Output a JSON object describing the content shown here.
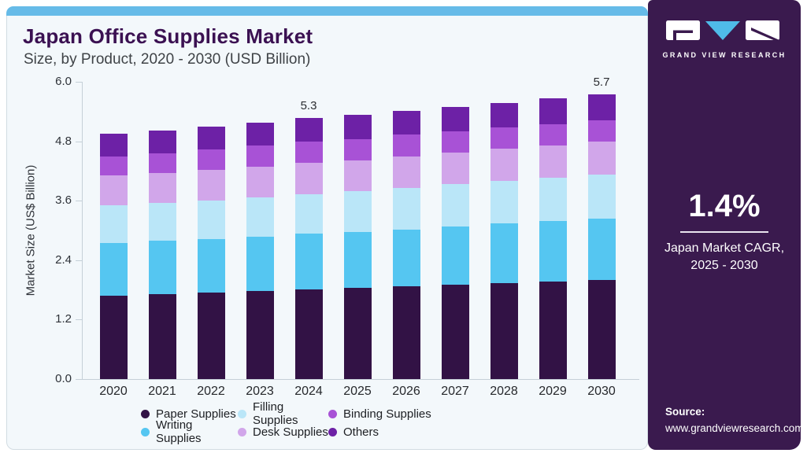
{
  "header": {
    "title": "Japan Office Supplies Market",
    "subtitle": "Size, by Product, 2020 - 2030 (USD Billion)"
  },
  "chart_data": {
    "type": "bar",
    "stacked": true,
    "title": "Japan Office Supplies Market Size, by Product, 2020 - 2030 (USD Billion)",
    "xlabel": "",
    "ylabel": "Market Size (US$ Billion)",
    "ylim": [
      0,
      6.0
    ],
    "y_ticks": [
      "0.0",
      "1.2",
      "2.4",
      "3.6",
      "4.8",
      "6.0"
    ],
    "grid": false,
    "legend_position": "bottom",
    "categories": [
      "2020",
      "2021",
      "2022",
      "2023",
      "2024",
      "2025",
      "2026",
      "2027",
      "2028",
      "2029",
      "2030"
    ],
    "series": [
      {
        "name": "Paper Supplies",
        "color": "#321245",
        "values": [
          1.68,
          1.71,
          1.74,
          1.78,
          1.81,
          1.84,
          1.87,
          1.9,
          1.94,
          1.97,
          2.0
        ]
      },
      {
        "name": "Writing Supplies",
        "color": "#55c6f1",
        "values": [
          1.07,
          1.08,
          1.09,
          1.1,
          1.12,
          1.13,
          1.15,
          1.18,
          1.2,
          1.22,
          1.24
        ]
      },
      {
        "name": "Filling Supplies",
        "color": "#bae6f8",
        "values": [
          0.76,
          0.77,
          0.78,
          0.79,
          0.8,
          0.82,
          0.84,
          0.85,
          0.86,
          0.87,
          0.88
        ]
      },
      {
        "name": "Desk Supplies",
        "color": "#d1a6ea",
        "values": [
          0.6,
          0.6,
          0.61,
          0.62,
          0.63,
          0.63,
          0.64,
          0.65,
          0.65,
          0.66,
          0.67
        ]
      },
      {
        "name": "Binding Supplies",
        "color": "#a852d6",
        "values": [
          0.38,
          0.4,
          0.41,
          0.42,
          0.43,
          0.42,
          0.43,
          0.42,
          0.43,
          0.43,
          0.44
        ]
      },
      {
        "name": "Others",
        "color": "#6d21a6",
        "values": [
          0.46,
          0.46,
          0.47,
          0.47,
          0.48,
          0.49,
          0.49,
          0.5,
          0.5,
          0.51,
          0.52
        ]
      }
    ],
    "annotations": [
      {
        "category": "2024",
        "label": "5.3"
      },
      {
        "category": "2030",
        "label": "5.7"
      }
    ],
    "legend_rows": [
      [
        "Paper Supplies",
        "Filling Supplies",
        "Binding Supplies"
      ],
      [
        "Writing Supplies",
        "Desk Supplies",
        "Others"
      ]
    ]
  },
  "sidebar": {
    "brand": "GRAND VIEW RESEARCH",
    "cagr_value": "1.4%",
    "cagr_caption_line1": "Japan Market CAGR,",
    "cagr_caption_line2": "2025 - 2030",
    "source_label": "Source:",
    "source_url": "www.grandviewresearch.com",
    "colors": {
      "panel_bg": "#3a1a4e",
      "accent_bar": "#66bbe8",
      "logo_triangle": "#4fbbe9",
      "title_text": "#3b1152"
    }
  }
}
